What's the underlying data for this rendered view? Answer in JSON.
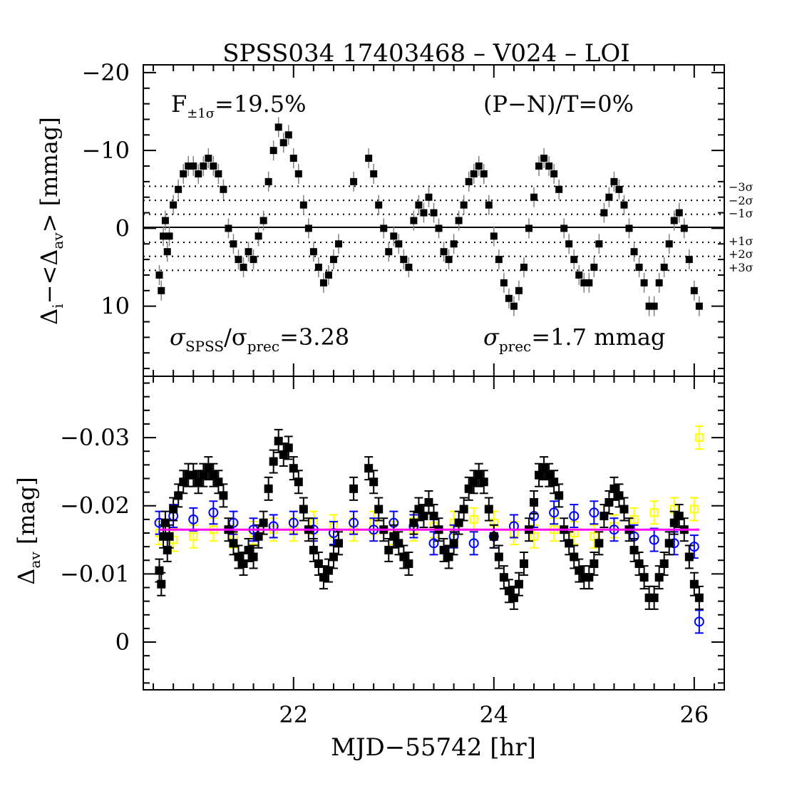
{
  "title": "SPSS034  17403468  –  V024  –  LOI",
  "xlabel": "MJD−55742 [hr]",
  "top_panel": {
    "ylabel_main": "Δ",
    "ylabel_sub_i": "i",
    "ylabel_mid": "−<Δ",
    "ylabel_sub_av": "av",
    "ylabel_end": "> [mmag]",
    "f_label": "F",
    "f_sub": "±1σ",
    "f_value": "=19.5%",
    "pn_label": "(P−N)/T=0%",
    "ratio_sigma1": "σ",
    "ratio_sub1": "SPSS",
    "ratio_mid": "/σ",
    "ratio_sub2": "prec",
    "ratio_value": "=3.28",
    "prec_sigma": "σ",
    "prec_sub": "prec",
    "prec_value": "=1.7  mmag",
    "sigma_labels": [
      "−3σ",
      "−2σ",
      "−1σ",
      "+1σ",
      "+2σ",
      "+3σ"
    ]
  },
  "bottom_panel": {
    "ylabel_main": "Δ",
    "ylabel_sub": "av",
    "ylabel_end": " [mag]"
  },
  "colors": {
    "target": "#000000",
    "comp1": "#0000ff",
    "comp2": "#ffff00",
    "mean_line": "#ff00ff",
    "errorbar_top": "#808080"
  },
  "chart_data": [
    {
      "type": "scatter",
      "panel": "top",
      "xlabel": "MJD−55742 [hr]",
      "ylabel": "Δi−<Δav> [mmag]",
      "xlim": [
        20.5,
        26.3
      ],
      "ylim": [
        -21,
        19
      ],
      "y_inverted": true,
      "x_ticks": [
        22,
        24,
        26
      ],
      "y_ticks": [
        -20,
        -10,
        0,
        10
      ],
      "sigma_lines": [
        -5.4,
        -3.6,
        -1.8,
        1.8,
        3.6,
        5.4
      ],
      "zero_line": 0,
      "series": [
        {
          "marker": "filled-square",
          "x": [
            20.66,
            20.68,
            20.7,
            20.72,
            20.74,
            20.76,
            20.8,
            20.85,
            20.9,
            20.95,
            21.0,
            21.05,
            21.1,
            21.15,
            21.2,
            21.25,
            21.3,
            21.35,
            21.4,
            21.45,
            21.5,
            21.55,
            21.6,
            21.65,
            21.7,
            21.75,
            21.8,
            21.85,
            21.9,
            21.95,
            22.0,
            22.05,
            22.1,
            22.15,
            22.2,
            22.25,
            22.3,
            22.35,
            22.4,
            22.45,
            22.6,
            22.75,
            22.8,
            22.85,
            22.9,
            22.95,
            23.0,
            23.05,
            23.1,
            23.15,
            23.2,
            23.25,
            23.3,
            23.35,
            23.4,
            23.45,
            23.5,
            23.55,
            23.6,
            23.65,
            23.7,
            23.75,
            23.8,
            23.85,
            23.9,
            23.95,
            24.0,
            24.05,
            24.1,
            24.15,
            24.2,
            24.25,
            24.3,
            24.35,
            24.4,
            24.45,
            24.5,
            24.55,
            24.6,
            24.65,
            24.7,
            24.75,
            24.8,
            24.85,
            24.9,
            24.95,
            25.0,
            25.05,
            25.1,
            25.15,
            25.2,
            25.25,
            25.3,
            25.35,
            25.4,
            25.45,
            25.5,
            25.55,
            25.6,
            25.65,
            25.7,
            25.75,
            25.8,
            25.85,
            25.9,
            25.95,
            26.0,
            26.05
          ],
          "y": [
            6,
            8,
            1,
            -1,
            3,
            1,
            -3,
            -5,
            -7,
            -8,
            -8,
            -7,
            -8,
            -9,
            -8,
            -7,
            -5,
            0,
            2,
            4,
            5,
            3,
            4,
            1,
            -1,
            -6,
            -10,
            -13,
            -11,
            -12,
            -9,
            -7,
            -3,
            0,
            3,
            5,
            7,
            6,
            4,
            2,
            -6,
            -9,
            -7,
            -3,
            0,
            3,
            1,
            2,
            4,
            5,
            -1,
            -3,
            -2,
            -4,
            -2,
            0,
            3,
            4,
            2,
            -1,
            -3,
            -6,
            -7,
            -8,
            -7,
            -3,
            1,
            4,
            7,
            9,
            10,
            8,
            5,
            0,
            -4,
            -8,
            -9,
            -8,
            -7,
            -5,
            0,
            2,
            4,
            6,
            7,
            7,
            5,
            2,
            -2,
            -4,
            -6,
            -5,
            -3,
            0,
            3,
            5,
            7,
            10,
            10,
            7,
            5,
            2,
            -1,
            -2,
            0,
            4,
            8,
            10
          ]
        }
      ]
    },
    {
      "type": "scatter",
      "panel": "bottom",
      "xlabel": "MJD−55742 [hr]",
      "ylabel": "Δav [mag]",
      "xlim": [
        20.5,
        26.3
      ],
      "ylim": [
        -0.039,
        0.007
      ],
      "y_inverted": true,
      "x_ticks": [
        22,
        24,
        26
      ],
      "y_ticks": [
        -0.03,
        -0.02,
        -0.01,
        0
      ],
      "y_tick_labels": [
        "−0.03",
        "−0.02",
        "−0.01",
        "0"
      ],
      "mean_line": -0.0165,
      "series": [
        {
          "marker": "filled-square",
          "color": "#000000",
          "x": [
            20.66,
            20.68,
            20.7,
            20.72,
            20.74,
            20.76,
            20.8,
            20.85,
            20.9,
            20.95,
            21.0,
            21.05,
            21.1,
            21.15,
            21.2,
            21.25,
            21.3,
            21.35,
            21.4,
            21.45,
            21.5,
            21.55,
            21.6,
            21.65,
            21.7,
            21.75,
            21.8,
            21.85,
            21.9,
            21.95,
            22.0,
            22.05,
            22.1,
            22.15,
            22.2,
            22.25,
            22.3,
            22.35,
            22.4,
            22.45,
            22.6,
            22.75,
            22.8,
            22.85,
            22.9,
            22.95,
            23.0,
            23.05,
            23.1,
            23.15,
            23.2,
            23.25,
            23.3,
            23.35,
            23.4,
            23.45,
            23.5,
            23.55,
            23.6,
            23.65,
            23.7,
            23.75,
            23.8,
            23.85,
            23.9,
            23.95,
            24.0,
            24.05,
            24.1,
            24.15,
            24.2,
            24.25,
            24.3,
            24.35,
            24.4,
            24.45,
            24.5,
            24.55,
            24.6,
            24.65,
            24.7,
            24.75,
            24.8,
            24.85,
            24.9,
            24.95,
            25.0,
            25.05,
            25.1,
            25.15,
            25.2,
            25.25,
            25.3,
            25.35,
            25.4,
            25.45,
            25.5,
            25.55,
            25.6,
            25.65,
            25.7,
            25.75,
            25.8,
            25.85,
            25.9,
            25.95,
            26.0,
            26.05
          ],
          "y": [
            -0.0105,
            -0.0085,
            -0.0155,
            -0.0175,
            -0.0135,
            -0.0155,
            -0.0195,
            -0.0215,
            -0.0235,
            -0.0245,
            -0.0245,
            -0.0235,
            -0.0245,
            -0.0255,
            -0.0245,
            -0.0235,
            -0.0215,
            -0.0165,
            -0.0145,
            -0.0125,
            -0.0115,
            -0.0135,
            -0.0125,
            -0.0155,
            -0.0175,
            -0.0225,
            -0.0265,
            -0.0295,
            -0.0275,
            -0.0285,
            -0.0255,
            -0.0235,
            -0.0195,
            -0.0165,
            -0.0135,
            -0.0115,
            -0.0095,
            -0.0105,
            -0.0125,
            -0.0145,
            -0.0225,
            -0.0255,
            -0.0235,
            -0.0195,
            -0.0165,
            -0.0135,
            -0.0155,
            -0.0145,
            -0.0125,
            -0.0115,
            -0.0175,
            -0.0195,
            -0.0185,
            -0.0205,
            -0.0185,
            -0.0165,
            -0.0135,
            -0.0125,
            -0.0145,
            -0.0175,
            -0.0195,
            -0.0225,
            -0.0235,
            -0.0245,
            -0.0235,
            -0.0195,
            -0.0155,
            -0.0125,
            -0.0095,
            -0.0075,
            -0.0065,
            -0.0085,
            -0.0115,
            -0.0165,
            -0.0205,
            -0.0245,
            -0.0255,
            -0.0245,
            -0.0235,
            -0.0215,
            -0.0165,
            -0.0145,
            -0.0125,
            -0.0105,
            -0.0095,
            -0.0095,
            -0.0115,
            -0.0145,
            -0.0185,
            -0.0205,
            -0.0225,
            -0.0215,
            -0.0195,
            -0.0165,
            -0.0135,
            -0.0115,
            -0.0095,
            -0.0065,
            -0.0065,
            -0.0095,
            -0.0115,
            -0.0145,
            -0.0175,
            -0.0185,
            -0.0165,
            -0.0125,
            -0.0085,
            -0.0065
          ]
        },
        {
          "marker": "open-circle",
          "color": "#0000ff",
          "x": [
            20.66,
            20.8,
            21.0,
            21.2,
            21.4,
            21.6,
            21.8,
            22.0,
            22.2,
            22.4,
            22.6,
            22.8,
            23.0,
            23.2,
            23.4,
            23.6,
            23.8,
            24.0,
            24.2,
            24.4,
            24.6,
            24.8,
            25.0,
            25.2,
            25.4,
            25.6,
            25.8,
            26.0,
            26.05
          ],
          "y": [
            -0.0175,
            -0.0185,
            -0.018,
            -0.019,
            -0.0175,
            -0.0165,
            -0.017,
            -0.0175,
            -0.0165,
            -0.016,
            -0.0175,
            -0.0165,
            -0.0175,
            -0.017,
            -0.0145,
            -0.0155,
            -0.0145,
            -0.0155,
            -0.017,
            -0.0185,
            -0.019,
            -0.0185,
            -0.019,
            -0.0165,
            -0.0155,
            -0.015,
            -0.0145,
            -0.014,
            -0.003
          ]
        },
        {
          "marker": "open-square",
          "color": "#ffff00",
          "x": [
            20.66,
            20.8,
            21.0,
            21.2,
            21.4,
            21.6,
            21.8,
            22.0,
            22.2,
            22.4,
            22.6,
            22.8,
            23.0,
            23.2,
            23.4,
            23.6,
            23.8,
            24.0,
            24.2,
            24.4,
            24.6,
            24.8,
            25.0,
            25.2,
            25.4,
            25.6,
            25.8,
            26.0,
            26.05
          ],
          "y": [
            -0.016,
            -0.015,
            -0.0155,
            -0.0165,
            -0.0155,
            -0.016,
            -0.0165,
            -0.0165,
            -0.0175,
            -0.017,
            -0.0165,
            -0.0175,
            -0.016,
            -0.0165,
            -0.017,
            -0.0175,
            -0.018,
            -0.0175,
            -0.016,
            -0.0155,
            -0.0165,
            -0.016,
            -0.0155,
            -0.017,
            -0.018,
            -0.019,
            -0.0195,
            -0.0195,
            -0.03
          ]
        }
      ]
    }
  ]
}
